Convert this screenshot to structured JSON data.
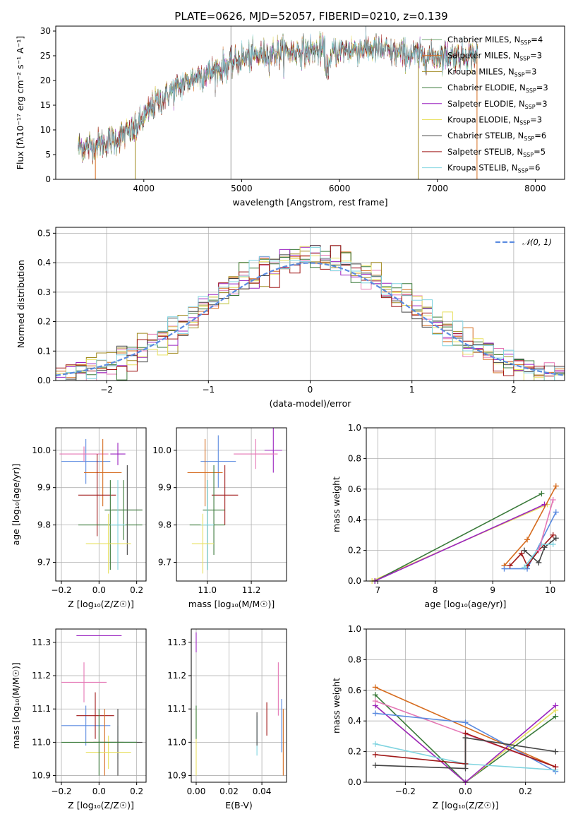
{
  "title": "PLATE=0626, MJD=52057, FIBERID=0210, z=0.139",
  "colors": [
    "#2ca02c",
    "#d66c1f",
    "#a08a20",
    "#3a7a3a",
    "#9b24c0",
    "#e8e060",
    "#444444",
    "#a01818",
    "#80d4e0"
  ],
  "models": [
    {
      "label": "Chabrier MILES, N",
      "sub": "SSP",
      "eq": "=4",
      "color": "#6aa36a"
    },
    {
      "label": "Salpeter MILES, N",
      "sub": "SSP",
      "eq": "=3",
      "color": "#d66c1f"
    },
    {
      "label": "Kroupa MILES, N",
      "sub": "SSP",
      "eq": "=3",
      "color": "#a08a20"
    },
    {
      "label": "Chabrier ELODIE, N",
      "sub": "SSP",
      "eq": "=3",
      "color": "#3a7a3a"
    },
    {
      "label": "Salpeter ELODIE, N",
      "sub": "SSP",
      "eq": "=3",
      "color": "#9b24c0"
    },
    {
      "label": "Kroupa ELODIE, N",
      "sub": "SSP",
      "eq": "=3",
      "color": "#e8e060"
    },
    {
      "label": "Chabrier STELIB, N",
      "sub": "SSP",
      "eq": "=6",
      "color": "#444444"
    },
    {
      "label": "Salpeter STELIB, N",
      "sub": "SSP",
      "eq": "=5",
      "color": "#a01818"
    },
    {
      "label": "Kroupa STELIB, N",
      "sub": "SSP",
      "eq": "=6",
      "color": "#80d4e0"
    }
  ],
  "chart_data": [
    {
      "id": "spectrum",
      "type": "line",
      "xlabel": "wavelength [Angstrom, rest frame]",
      "ylabel": "Flux [fλ10⁻¹⁷ erg cm⁻² s⁻¹ A⁻¹]",
      "xlim": [
        3100,
        8300
      ],
      "ylim": [
        0,
        31
      ],
      "xticks": [
        4000,
        5000,
        6000,
        7000,
        8000
      ],
      "yticks": [
        0,
        5,
        10,
        15,
        20,
        25,
        30
      ],
      "continuum": [
        [
          3330,
          6.5
        ],
        [
          3500,
          6.8
        ],
        [
          3700,
          8
        ],
        [
          3900,
          10
        ],
        [
          4000,
          12.5
        ],
        [
          4100,
          15
        ],
        [
          4300,
          18
        ],
        [
          4500,
          20.5
        ],
        [
          4800,
          22.5
        ],
        [
          5000,
          24.5
        ],
        [
          5300,
          25.5
        ],
        [
          5600,
          26
        ],
        [
          6000,
          26
        ],
        [
          6300,
          26.5
        ],
        [
          6600,
          25.5
        ],
        [
          6900,
          25
        ],
        [
          7200,
          25
        ],
        [
          7400,
          25
        ]
      ],
      "spikes": [
        [
          4890,
          31
        ],
        [
          3500,
          0
        ],
        [
          3910,
          0
        ],
        [
          6800,
          0
        ],
        [
          7400,
          0
        ]
      ],
      "legend": "top-right"
    },
    {
      "id": "residuals",
      "type": "histogram",
      "xlabel": "(data-model)/error",
      "ylabel": "Normed distribution",
      "xlim": [
        -2.5,
        2.5
      ],
      "ylim": [
        0,
        0.52
      ],
      "xticks": [
        -2,
        -1,
        0,
        1,
        2
      ],
      "yticks": [
        0,
        0.1,
        0.2,
        0.3,
        0.4,
        0.5
      ],
      "bin_width": 0.1,
      "legend_label": "𝒩(0, 1)",
      "legend": "top-right"
    },
    {
      "id": "age-Z",
      "type": "errorbar",
      "xlabel": "Z [log₁₀(Z/Z☉)]",
      "ylabel": "age  [log₁₀(age/yr)]",
      "xlim": [
        -0.23,
        0.25
      ],
      "ylim": [
        9.65,
        10.06
      ],
      "xticks": [
        -0.2,
        0.0,
        0.2
      ],
      "yticks": [
        9.7,
        9.8,
        9.9,
        10.0
      ],
      "points": [
        {
          "x": -0.07,
          "y": 9.97,
          "xe": 0.13,
          "ye": 0.06,
          "color": "#5b8be0"
        },
        {
          "x": -0.08,
          "y": 9.99,
          "xe": 0.13,
          "ye": 0.02,
          "color": "#e577b5"
        },
        {
          "x": 0.02,
          "y": 9.94,
          "xe": 0.1,
          "ye": 0.09,
          "color": "#d66c1f"
        },
        {
          "x": 0.1,
          "y": 9.99,
          "xe": 0.04,
          "ye": 0.03,
          "color": "#9b24c0"
        },
        {
          "x": -0.01,
          "y": 9.88,
          "xe": 0.1,
          "ye": 0.11,
          "color": "#a01818"
        },
        {
          "x": 0.15,
          "y": 9.84,
          "xe": 0.08,
          "ye": 0.12,
          "color": "#444444"
        },
        {
          "x": 0.13,
          "y": 9.84,
          "xe": 0.1,
          "ye": 0.08,
          "color": "#3a7a3a"
        },
        {
          "x": 0.06,
          "y": 9.8,
          "xe": 0.17,
          "ye": 0.12,
          "color": "#3a7a3a"
        },
        {
          "x": 0.1,
          "y": 9.8,
          "xe": 0.04,
          "ye": 0.12,
          "color": "#80d4e0"
        },
        {
          "x": 0.05,
          "y": 9.75,
          "xe": 0.12,
          "ye": 0.08,
          "color": "#e8e060"
        }
      ]
    },
    {
      "id": "age-mass",
      "type": "errorbar",
      "xlabel": "mass [log₁₀(M/M☉)]",
      "ylabel": "",
      "xlim": [
        10.86,
        11.36
      ],
      "ylim": [
        9.65,
        10.06
      ],
      "xticks": [
        11.0,
        11.2
      ],
      "yticks": [
        9.7,
        9.8,
        9.9,
        10.0
      ],
      "points": [
        {
          "x": 11.3,
          "y": 10.0,
          "xe": 0.04,
          "ye": 0.06,
          "color": "#9b24c0"
        },
        {
          "x": 11.22,
          "y": 9.99,
          "xe": 0.1,
          "ye": 0.04,
          "color": "#e577b5"
        },
        {
          "x": 11.05,
          "y": 9.97,
          "xe": 0.08,
          "ye": 0.07,
          "color": "#5b8be0"
        },
        {
          "x": 10.99,
          "y": 9.94,
          "xe": 0.08,
          "ye": 0.09,
          "color": "#d66c1f"
        },
        {
          "x": 11.08,
          "y": 9.88,
          "xe": 0.06,
          "ye": 0.08,
          "color": "#a01818"
        },
        {
          "x": 11.03,
          "y": 9.84,
          "xe": 0.05,
          "ye": 0.12,
          "color": "#3a7a3a"
        },
        {
          "x": 11.0,
          "y": 9.8,
          "xe": 0.08,
          "ye": 0.12,
          "color": "#3a7a3a"
        },
        {
          "x": 11.0,
          "y": 9.8,
          "xe": 0.03,
          "ye": 0.12,
          "color": "#80d4e0"
        },
        {
          "x": 10.98,
          "y": 9.75,
          "xe": 0.05,
          "ye": 0.08,
          "color": "#e8e060"
        }
      ]
    },
    {
      "id": "mw-age",
      "type": "line",
      "xlabel": "age  [log₁₀(age/yr)]",
      "ylabel": "mass weight",
      "xlim": [
        6.8,
        10.25
      ],
      "ylim": [
        0,
        1
      ],
      "xticks": [
        7,
        8,
        9,
        10
      ],
      "yticks": [
        0.0,
        0.2,
        0.4,
        0.6,
        0.8,
        1.0
      ],
      "series": [
        {
          "color": "#e8e060",
          "points": [
            [
              6.9,
              0.0
            ],
            [
              9.95,
              0.5
            ]
          ]
        },
        {
          "color": "#3a7a3a",
          "points": [
            [
              6.95,
              0.0
            ],
            [
              9.85,
              0.57
            ]
          ]
        },
        {
          "color": "#9b24c0",
          "points": [
            [
              6.95,
              0.0
            ],
            [
              9.9,
              0.5
            ]
          ]
        },
        {
          "color": "#d66c1f",
          "points": [
            [
              9.2,
              0.1
            ],
            [
              9.6,
              0.27
            ],
            [
              10.1,
              0.62
            ]
          ]
        },
        {
          "color": "#5b8be0",
          "points": [
            [
              9.2,
              0.08
            ],
            [
              9.6,
              0.08
            ],
            [
              10.1,
              0.45
            ]
          ]
        },
        {
          "color": "#a01818",
          "points": [
            [
              9.3,
              0.1
            ],
            [
              9.5,
              0.18
            ],
            [
              9.6,
              0.1
            ],
            [
              9.8,
              0.2
            ],
            [
              10.05,
              0.3
            ]
          ]
        },
        {
          "color": "#444444",
          "points": [
            [
              9.55,
              0.2
            ],
            [
              9.8,
              0.12
            ],
            [
              9.9,
              0.22
            ],
            [
              10.1,
              0.28
            ]
          ]
        },
        {
          "color": "#80d4e0",
          "points": [
            [
              9.55,
              0.09
            ],
            [
              9.85,
              0.24
            ],
            [
              10.05,
              0.24
            ]
          ]
        },
        {
          "color": "#e577b5",
          "points": [
            [
              9.8,
              0.2
            ],
            [
              10.05,
              0.53
            ]
          ]
        }
      ]
    },
    {
      "id": "mass-Z",
      "type": "errorbar",
      "xlabel": "Z [log₁₀(Z/Z☉)]",
      "ylabel": "mass [log₁₀(M/M☉)]",
      "xlim": [
        -0.23,
        0.25
      ],
      "ylim": [
        10.88,
        11.34
      ],
      "xticks": [
        -0.2,
        0.0,
        0.2
      ],
      "yticks": [
        10.9,
        11.0,
        11.1,
        11.2,
        11.3
      ],
      "points": [
        {
          "x": 0.0,
          "y": 11.32,
          "xe": 0.12,
          "ye": 0.0,
          "color": "#9b24c0"
        },
        {
          "x": -0.08,
          "y": 11.18,
          "xe": 0.12,
          "ye": 0.06,
          "color": "#e577b5"
        },
        {
          "x": -0.07,
          "y": 11.05,
          "xe": 0.13,
          "ye": 0.06,
          "color": "#5b8be0"
        },
        {
          "x": -0.02,
          "y": 11.08,
          "xe": 0.1,
          "ye": 0.07,
          "color": "#a01818"
        },
        {
          "x": 0.03,
          "y": 11.0,
          "xe": 0.1,
          "ye": 0.1,
          "color": "#d66c1f"
        },
        {
          "x": 0.1,
          "y": 11.0,
          "xe": 0.1,
          "ye": 0.05,
          "color": "#80d4e0"
        },
        {
          "x": 0.1,
          "y": 11.0,
          "xe": 0.13,
          "ye": 0.1,
          "color": "#444444"
        },
        {
          "x": 0.05,
          "y": 10.97,
          "xe": 0.12,
          "ye": 0.05,
          "color": "#e8e060"
        },
        {
          "x": 0.0,
          "y": 11.0,
          "xe": 0.2,
          "ye": 0.1,
          "color": "#3a7a3a"
        }
      ]
    },
    {
      "id": "mass-ebv",
      "type": "errorbar",
      "xlabel": "E(B-V)",
      "ylabel": "",
      "xlim": [
        -0.003,
        0.055
      ],
      "ylim": [
        10.88,
        11.34
      ],
      "xticks": [
        0.0,
        0.02,
        0.04
      ],
      "yticks": [
        10.9,
        11.0,
        11.1,
        11.2,
        11.3
      ],
      "points": [
        {
          "x": 0.0,
          "y": 11.3,
          "xe": 0,
          "ye": 0.03,
          "color": "#9b24c0"
        },
        {
          "x": 0.0,
          "y": 11.0,
          "xe": 0,
          "ye": 0.1,
          "color": "#e8e060"
        },
        {
          "x": 0.0,
          "y": 11.06,
          "xe": 0,
          "ye": 0.05,
          "color": "#3a7a3a"
        },
        {
          "x": 0.037,
          "y": 11.02,
          "xe": 0,
          "ye": 0.06,
          "color": "#80d4e0"
        },
        {
          "x": 0.037,
          "y": 11.04,
          "xe": 0,
          "ye": 0.05,
          "color": "#444444"
        },
        {
          "x": 0.043,
          "y": 11.07,
          "xe": 0,
          "ye": 0.05,
          "color": "#a01818"
        },
        {
          "x": 0.05,
          "y": 11.16,
          "xe": 0,
          "ye": 0.08,
          "color": "#e577b5"
        },
        {
          "x": 0.052,
          "y": 11.05,
          "xe": 0,
          "ye": 0.08,
          "color": "#5b8be0"
        },
        {
          "x": 0.053,
          "y": 11.0,
          "xe": 0,
          "ye": 0.1,
          "color": "#d66c1f"
        }
      ]
    },
    {
      "id": "mw-Z",
      "type": "line",
      "xlabel": "Z [log₁₀(Z/Z☉)]",
      "ylabel": "mass weight",
      "xlim": [
        -0.33,
        0.33
      ],
      "ylim": [
        0,
        1
      ],
      "xticks": [
        -0.2,
        0.0,
        0.2
      ],
      "yticks": [
        0.0,
        0.2,
        0.4,
        0.6,
        0.8,
        1.0
      ],
      "series": [
        {
          "color": "#d66c1f",
          "points": [
            [
              -0.3,
              0.62
            ],
            [
              0.3,
              0.1
            ]
          ]
        },
        {
          "color": "#3a7a3a",
          "points": [
            [
              -0.3,
              0.57
            ],
            [
              0.0,
              0.0
            ],
            [
              0.3,
              0.43
            ]
          ]
        },
        {
          "color": "#e8e060",
          "points": [
            [
              -0.3,
              0.5
            ],
            [
              0.0,
              0.0
            ],
            [
              0.3,
              0.47
            ]
          ]
        },
        {
          "color": "#9b24c0",
          "points": [
            [
              -0.3,
              0.5
            ],
            [
              0.0,
              0.0
            ],
            [
              0.3,
              0.5
            ]
          ]
        },
        {
          "color": "#e577b5",
          "points": [
            [
              -0.3,
              0.53
            ],
            [
              0.3,
              0.1
            ]
          ]
        },
        {
          "color": "#5b8be0",
          "points": [
            [
              -0.3,
              0.45
            ],
            [
              0.0,
              0.39
            ],
            [
              0.3,
              0.07
            ]
          ]
        },
        {
          "color": "#80d4e0",
          "points": [
            [
              -0.3,
              0.25
            ],
            [
              0.0,
              0.12
            ],
            [
              0.3,
              0.08
            ]
          ]
        },
        {
          "color": "#a01818",
          "points": [
            [
              -0.3,
              0.18
            ],
            [
              0.0,
              0.12
            ],
            [
              0.0,
              0.32
            ],
            [
              0.3,
              0.1
            ]
          ]
        },
        {
          "color": "#444444",
          "points": [
            [
              -0.3,
              0.11
            ],
            [
              0.0,
              0.09
            ],
            [
              0.0,
              0.29
            ],
            [
              0.3,
              0.2
            ]
          ]
        }
      ]
    }
  ]
}
